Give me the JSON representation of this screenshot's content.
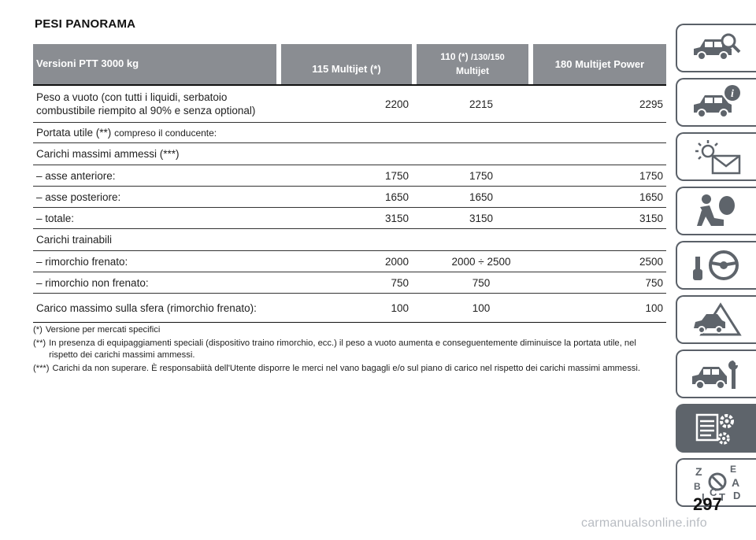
{
  "page": {
    "title": "PESI PANORAMA",
    "number": "297",
    "watermark": "carmanualsonline.info"
  },
  "table": {
    "header": {
      "col0": "Versioni PTT 3000 kg",
      "col1": "115 Multijet (*)",
      "col2_line1": "110 (*)",
      "col2_line1_small": "/130/150",
      "col2_line2": "Multijet",
      "col3": "180 Multijet Power"
    },
    "rows": [
      {
        "label_line1": "Peso a vuoto (con tutti i liquidi, serbatoio",
        "label_line2": "combustibile riempito al 90% e senza optional)",
        "v1": "2200",
        "v2": "2215",
        "v3": "2295"
      },
      {
        "label": "Portata utile (**)",
        "label_small": "compreso il conducente:"
      },
      {
        "label": "Carichi massimi ammessi (***)"
      },
      {
        "label": "– asse anteriore:",
        "v1": "1750",
        "v2": "1750",
        "v3": "1750"
      },
      {
        "label": "– asse posteriore:",
        "v1": "1650",
        "v2": "1650",
        "v3": "1650"
      },
      {
        "label": "– totale:",
        "v1": "3150",
        "v2": "3150",
        "v3": "3150"
      },
      {
        "label": "Carichi trainabili"
      },
      {
        "label": "– rimorchio frenato:",
        "v1": "2000",
        "v2": "2000 ÷ 2500",
        "v3": "2500"
      },
      {
        "label": "– rimorchio non frenato:",
        "v1": "750",
        "v2": "750",
        "v3": "750"
      },
      {
        "label": "Carico massimo sulla sfera (rimorchio frenato):",
        "v1": "100",
        "v2": "100",
        "v3": "100"
      }
    ]
  },
  "notes": [
    {
      "mark": "(*)",
      "text": "Versione per mercati specifici"
    },
    {
      "mark": "(**)",
      "text": "In presenza di equipaggiamenti speciali (dispositivo traino rimorchio, ecc.) il peso a vuoto aumenta e conseguentemente diminuisce la portata utile, nel rispetto dei carichi massimi ammessi."
    },
    {
      "mark": "(***)",
      "text": "Carichi da non superare. È responsabiità dell'Utente disporre le merci nel vano bagagli e/o sul piano di carico nel rispetto dei carichi massimi ammessi."
    }
  ],
  "sidebar": {
    "tabs": [
      {
        "icon": "car-search-icon"
      },
      {
        "icon": "car-info-icon"
      },
      {
        "icon": "warning-light-icon"
      },
      {
        "icon": "airbag-passenger-icon"
      },
      {
        "icon": "steering-wheel-key-icon"
      },
      {
        "icon": "car-breakdown-icon"
      },
      {
        "icon": "car-wrench-icon"
      },
      {
        "icon": "technical-data-gear-icon",
        "active": true
      },
      {
        "icon": "alphabetical-index-icon",
        "letters": [
          "Z",
          "E",
          "B",
          "A",
          "C",
          "D",
          "T",
          "I"
        ]
      }
    ]
  }
}
